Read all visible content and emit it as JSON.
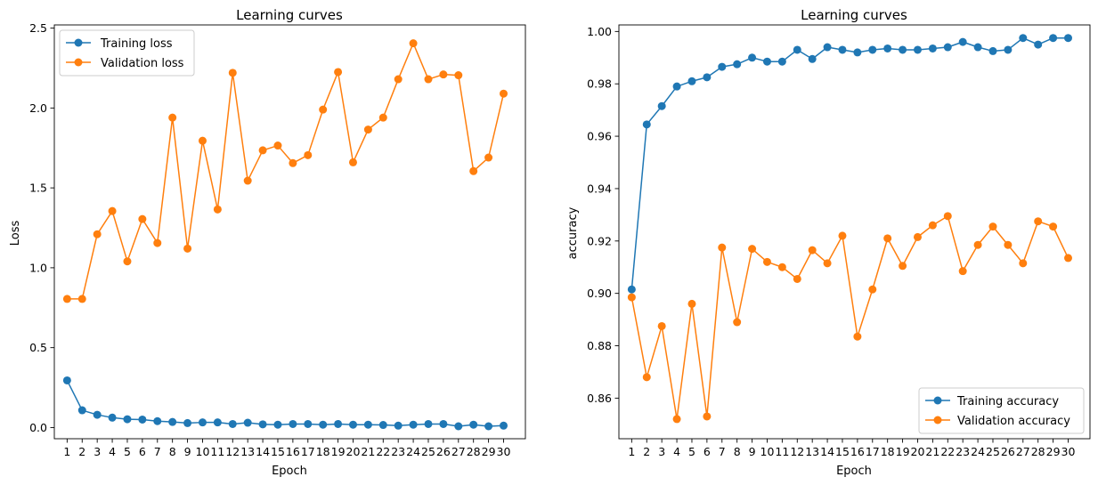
{
  "chart_data": [
    {
      "type": "line",
      "title": "Learning curves",
      "xlabel": "Epoch",
      "ylabel": "Loss",
      "x": [
        1,
        2,
        3,
        4,
        5,
        6,
        7,
        8,
        9,
        10,
        11,
        12,
        13,
        14,
        15,
        16,
        17,
        18,
        19,
        20,
        21,
        22,
        23,
        24,
        25,
        26,
        27,
        28,
        29,
        30
      ],
      "x_tick_labels": [
        "1",
        "2",
        "3",
        "4",
        "5",
        "6",
        "7",
        "8",
        "9",
        "10",
        "11",
        "12",
        "13",
        "14",
        "15",
        "16",
        "17",
        "18",
        "19",
        "20",
        "21",
        "22",
        "23",
        "24",
        "25",
        "26",
        "27",
        "28",
        "29",
        "30"
      ],
      "xlim": [
        0.15,
        31.45
      ],
      "ylim": [
        -0.07,
        2.52
      ],
      "yticks": [
        0.0,
        0.5,
        1.0,
        1.5,
        2.0,
        2.5
      ],
      "ytick_labels": [
        "0.0",
        "0.5",
        "1.0",
        "1.5",
        "2.0",
        "2.5"
      ],
      "legend_position": "top-left",
      "series": [
        {
          "name": "Training loss",
          "color": "#1f77b4",
          "values": [
            0.295,
            0.108,
            0.08,
            0.062,
            0.052,
            0.05,
            0.04,
            0.035,
            0.028,
            0.032,
            0.032,
            0.022,
            0.03,
            0.02,
            0.018,
            0.022,
            0.022,
            0.018,
            0.022,
            0.018,
            0.018,
            0.016,
            0.012,
            0.018,
            0.022,
            0.022,
            0.008,
            0.018,
            0.008,
            0.012
          ]
        },
        {
          "name": "Validation loss",
          "color": "#ff7f0e",
          "values": [
            0.805,
            0.805,
            1.21,
            1.355,
            1.04,
            1.305,
            1.155,
            1.94,
            1.12,
            1.795,
            1.365,
            2.22,
            1.545,
            1.735,
            1.765,
            1.655,
            1.705,
            1.99,
            2.225,
            1.66,
            1.865,
            1.94,
            2.18,
            2.405,
            2.18,
            2.21,
            2.205,
            1.605,
            1.69,
            2.09
          ]
        }
      ]
    },
    {
      "type": "line",
      "title": "Learning curves",
      "xlabel": "Epoch",
      "ylabel": "accuracy",
      "x": [
        1,
        2,
        3,
        4,
        5,
        6,
        7,
        8,
        9,
        10,
        11,
        12,
        13,
        14,
        15,
        16,
        17,
        18,
        19,
        20,
        21,
        22,
        23,
        24,
        25,
        26,
        27,
        28,
        29,
        30
      ],
      "x_tick_labels": [
        "1",
        "2",
        "3",
        "4",
        "5",
        "6",
        "7",
        "8",
        "9",
        "10",
        "11",
        "12",
        "13",
        "14",
        "15",
        "16",
        "17",
        "18",
        "19",
        "20",
        "21",
        "22",
        "23",
        "24",
        "25",
        "26",
        "27",
        "28",
        "29",
        "30"
      ],
      "xlim": [
        0.15,
        31.45
      ],
      "ylim": [
        0.8445,
        1.0025
      ],
      "yticks": [
        0.86,
        0.88,
        0.9,
        0.92,
        0.94,
        0.96,
        0.98,
        1.0
      ],
      "ytick_labels": [
        "0.86",
        "0.88",
        "0.90",
        "0.92",
        "0.94",
        "0.96",
        "0.98",
        "1.00"
      ],
      "legend_position": "bottom-right",
      "series": [
        {
          "name": "Training accuracy",
          "color": "#1f77b4",
          "values": [
            0.9015,
            0.9645,
            0.9715,
            0.979,
            0.981,
            0.9825,
            0.9865,
            0.9875,
            0.99,
            0.9885,
            0.9885,
            0.993,
            0.9895,
            0.994,
            0.993,
            0.992,
            0.993,
            0.9935,
            0.993,
            0.993,
            0.9935,
            0.994,
            0.996,
            0.994,
            0.9925,
            0.993,
            0.9975,
            0.995,
            0.9975,
            0.9975
          ]
        },
        {
          "name": "Validation accuracy",
          "color": "#ff7f0e",
          "values": [
            0.8985,
            0.868,
            0.8875,
            0.852,
            0.896,
            0.853,
            0.9175,
            0.889,
            0.917,
            0.912,
            0.91,
            0.9055,
            0.9165,
            0.9115,
            0.922,
            0.8835,
            0.9015,
            0.921,
            0.9105,
            0.9215,
            0.926,
            0.9295,
            0.9085,
            0.9185,
            0.9255,
            0.9185,
            0.9115,
            0.9275,
            0.9255,
            0.9135
          ]
        }
      ]
    }
  ]
}
